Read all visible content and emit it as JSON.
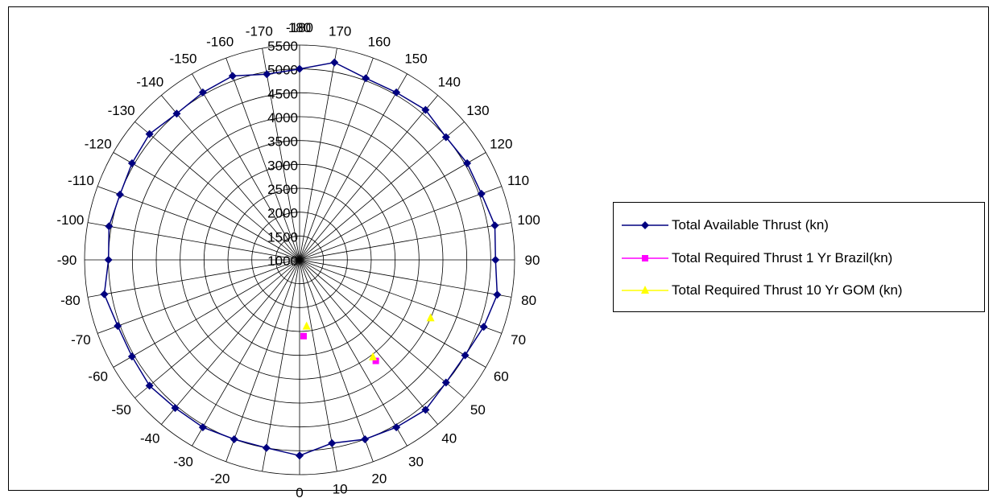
{
  "chart_data": {
    "type": "polar-line",
    "angle_unit": "degrees",
    "angle_ticks": [
      180,
      170,
      160,
      150,
      140,
      130,
      120,
      110,
      100,
      90,
      80,
      70,
      60,
      50,
      40,
      30,
      20,
      10,
      0,
      -20,
      -30,
      -40,
      -50,
      -60,
      -70,
      -80,
      -90,
      -100,
      -110,
      -120,
      -130,
      -140,
      -150,
      -160,
      -170,
      -180
    ],
    "radial_ticks": [
      1000,
      1500,
      2000,
      2500,
      3000,
      3500,
      4000,
      4500,
      5000,
      5500
    ],
    "rlim": [
      1000,
      5500
    ],
    "grid": true,
    "legend_position": "right",
    "series": [
      {
        "name": "Total Available Thrust (kn)",
        "color": "#000080",
        "marker": "diamond",
        "points": [
          {
            "angle": 0,
            "r": 5100
          },
          {
            "angle": 10,
            "r": 4900
          },
          {
            "angle": 20,
            "r": 5000
          },
          {
            "angle": 30,
            "r": 5050
          },
          {
            "angle": 40,
            "r": 5100
          },
          {
            "angle": 50,
            "r": 5000
          },
          {
            "angle": 60,
            "r": 5000
          },
          {
            "angle": 70,
            "r": 5100
          },
          {
            "angle": 80,
            "r": 5200
          },
          {
            "angle": 90,
            "r": 5100
          },
          {
            "angle": 100,
            "r": 5150
          },
          {
            "angle": 110,
            "r": 5050
          },
          {
            "angle": 120,
            "r": 5050
          },
          {
            "angle": 130,
            "r": 5000
          },
          {
            "angle": 140,
            "r": 5100
          },
          {
            "angle": 150,
            "r": 5050
          },
          {
            "angle": 160,
            "r": 5050
          },
          {
            "angle": 170,
            "r": 5200
          },
          {
            "angle": 180,
            "r": 5000
          },
          {
            "angle": -170,
            "r": 4950
          },
          {
            "angle": -160,
            "r": 5100
          },
          {
            "angle": -150,
            "r": 5050
          },
          {
            "angle": -140,
            "r": 5000
          },
          {
            "angle": -130,
            "r": 5100
          },
          {
            "angle": -120,
            "r": 5050
          },
          {
            "angle": -110,
            "r": 5000
          },
          {
            "angle": -100,
            "r": 5050
          },
          {
            "angle": -90,
            "r": 5000
          },
          {
            "angle": -80,
            "r": 5150
          },
          {
            "angle": -70,
            "r": 5050
          },
          {
            "angle": -60,
            "r": 5050
          },
          {
            "angle": -50,
            "r": 5100
          },
          {
            "angle": -40,
            "r": 5050
          },
          {
            "angle": -30,
            "r": 5050
          },
          {
            "angle": -20,
            "r": 5000
          },
          {
            "angle": -10,
            "r": 5000
          },
          {
            "angle": 0,
            "r": 5100
          }
        ]
      },
      {
        "name": "Total Required Thrust 1 Yr Brazil(kn)",
        "color": "#FF00FF",
        "marker": "square",
        "points": [
          {
            "angle": 3,
            "r": 2600
          },
          {
            "angle": 37,
            "r": 3650
          }
        ]
      },
      {
        "name": "Total Required Thrust 10 Yr GOM (kn)",
        "color": "#FFFF00",
        "marker": "triangle",
        "points": [
          {
            "angle": 6,
            "r": 2400
          },
          {
            "angle": 37,
            "r": 3550
          },
          {
            "angle": 66,
            "r": 4000
          }
        ]
      }
    ]
  },
  "legend": {
    "items": [
      {
        "label": "Total Available Thrust (kn)",
        "color": "#000080",
        "marker": "diamond"
      },
      {
        "label": "Total Required Thrust 1 Yr Brazil(kn)",
        "color": "#FF00FF",
        "marker": "square"
      },
      {
        "label": "Total Required Thrust 10 Yr GOM (kn)",
        "color": "#FFFF00",
        "marker": "triangle"
      }
    ]
  }
}
